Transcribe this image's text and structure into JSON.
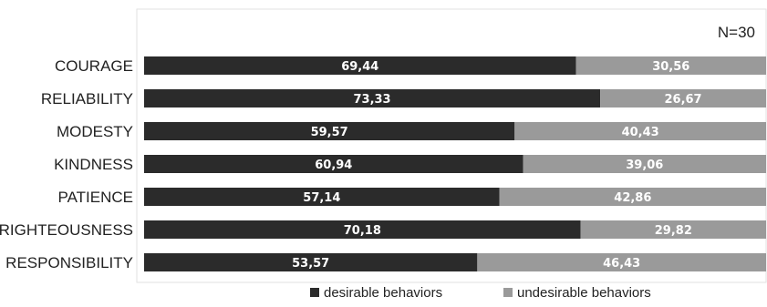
{
  "chart_data": {
    "type": "bar",
    "orientation": "horizontal",
    "stacked": true,
    "note": "N=30",
    "categories": [
      "COURAGE",
      "RELIABILITY",
      "MODESTY",
      "KINDNESS",
      "PATIENCE",
      "RIGHTEOUSNESS",
      "RESPONSIBILITY"
    ],
    "series": [
      {
        "name": "desirable behaviors",
        "color": "#2b2b2b",
        "values": [
          69.44,
          73.33,
          59.57,
          60.94,
          57.14,
          70.18,
          53.57
        ],
        "labels": [
          "69,44",
          "73,33",
          "59,57",
          "60,94",
          "57,14",
          "70,18",
          "53,57"
        ]
      },
      {
        "name": "undesirable behaviors",
        "color": "#9a9a9a",
        "values": [
          30.56,
          26.67,
          40.43,
          39.06,
          42.86,
          29.82,
          46.43
        ],
        "labels": [
          "30,56",
          "26,67",
          "40,43",
          "39,06",
          "42,86",
          "29,82",
          "46,43"
        ]
      }
    ],
    "xlim": [
      0,
      100
    ],
    "legend_position": "bottom",
    "grid": false
  }
}
